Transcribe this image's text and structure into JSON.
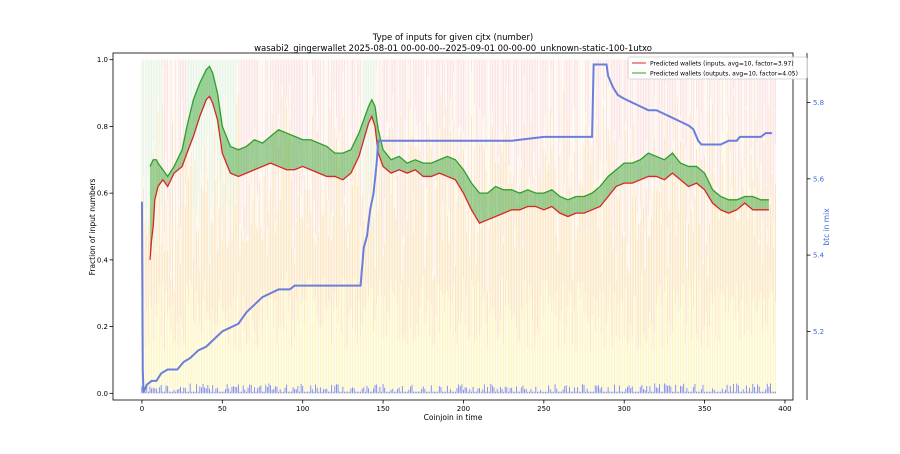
{
  "chart_data": {
    "type": "line",
    "title": "Type of inputs for given cjtx (number)",
    "subtitle": "wasabi2_gingerwallet 2025-08-01 00-00-00--2025-09-01 00-00-00_unknown-static-100-1utxo",
    "xlabel": "Coinjoin in time",
    "ylabel": "Fraction of input numbers",
    "y2label": "btc in mix",
    "xlim": [
      -18,
      405
    ],
    "ylim": [
      -0.02,
      1.02
    ],
    "y2lim": [
      5.02,
      5.93
    ],
    "x_ticks": [
      0,
      50,
      100,
      150,
      200,
      250,
      300,
      350,
      400
    ],
    "y_ticks": [
      0.0,
      0.2,
      0.4,
      0.6,
      0.8,
      1.0
    ],
    "y2_ticks": [
      5.2,
      5.4,
      5.6,
      5.8
    ],
    "y2_tick_labels": [
      "5.2",
      "5.4",
      "5.6",
      "5.8"
    ],
    "legend_position": "top-right",
    "grid": false,
    "colors": {
      "inputs_line": "#d62728",
      "outputs_line": "#2ca02c",
      "fill": "#2ca02c",
      "btc_line": "#6a7fdb",
      "y2_axis": "#4169e1",
      "bars_orange": "#f5b041",
      "bars_yellow": "#f7e96b",
      "bars_pink": "#f4b6be",
      "bars_lightgreen": "#bfe5bf",
      "bars_cream": "#fdebd3",
      "bars_blue": "#3b4fd6"
    },
    "series": [
      {
        "name": "Predicted wallets (inputs, avg=10, factor=3.97)",
        "points": [
          [
            5,
            0.4
          ],
          [
            6,
            0.46
          ],
          [
            7,
            0.5
          ],
          [
            8,
            0.58
          ],
          [
            9,
            0.6
          ],
          [
            10,
            0.62
          ],
          [
            13,
            0.64
          ],
          [
            16,
            0.62
          ],
          [
            20,
            0.66
          ],
          [
            25,
            0.68
          ],
          [
            28,
            0.72
          ],
          [
            32,
            0.77
          ],
          [
            36,
            0.83
          ],
          [
            40,
            0.88
          ],
          [
            42,
            0.89
          ],
          [
            44,
            0.87
          ],
          [
            47,
            0.82
          ],
          [
            50,
            0.72
          ],
          [
            55,
            0.66
          ],
          [
            60,
            0.65
          ],
          [
            65,
            0.66
          ],
          [
            70,
            0.67
          ],
          [
            75,
            0.68
          ],
          [
            80,
            0.69
          ],
          [
            85,
            0.68
          ],
          [
            90,
            0.67
          ],
          [
            95,
            0.67
          ],
          [
            100,
            0.68
          ],
          [
            105,
            0.67
          ],
          [
            110,
            0.66
          ],
          [
            115,
            0.65
          ],
          [
            120,
            0.65
          ],
          [
            125,
            0.64
          ],
          [
            130,
            0.66
          ],
          [
            135,
            0.71
          ],
          [
            138,
            0.76
          ],
          [
            141,
            0.81
          ],
          [
            143,
            0.83
          ],
          [
            145,
            0.8
          ],
          [
            147,
            0.72
          ],
          [
            150,
            0.68
          ],
          [
            155,
            0.66
          ],
          [
            160,
            0.67
          ],
          [
            165,
            0.66
          ],
          [
            170,
            0.67
          ],
          [
            175,
            0.65
          ],
          [
            180,
            0.65
          ],
          [
            185,
            0.66
          ],
          [
            190,
            0.65
          ],
          [
            195,
            0.64
          ],
          [
            200,
            0.6
          ],
          [
            205,
            0.55
          ],
          [
            210,
            0.51
          ],
          [
            215,
            0.52
          ],
          [
            220,
            0.53
          ],
          [
            225,
            0.54
          ],
          [
            230,
            0.55
          ],
          [
            235,
            0.55
          ],
          [
            240,
            0.56
          ],
          [
            245,
            0.56
          ],
          [
            250,
            0.55
          ],
          [
            255,
            0.56
          ],
          [
            260,
            0.54
          ],
          [
            265,
            0.53
          ],
          [
            270,
            0.54
          ],
          [
            275,
            0.54
          ],
          [
            280,
            0.55
          ],
          [
            285,
            0.56
          ],
          [
            290,
            0.59
          ],
          [
            295,
            0.62
          ],
          [
            300,
            0.63
          ],
          [
            305,
            0.63
          ],
          [
            310,
            0.64
          ],
          [
            315,
            0.65
          ],
          [
            320,
            0.65
          ],
          [
            325,
            0.64
          ],
          [
            330,
            0.66
          ],
          [
            335,
            0.64
          ],
          [
            340,
            0.62
          ],
          [
            345,
            0.63
          ],
          [
            350,
            0.61
          ],
          [
            355,
            0.57
          ],
          [
            360,
            0.55
          ],
          [
            365,
            0.54
          ],
          [
            370,
            0.55
          ],
          [
            375,
            0.57
          ],
          [
            380,
            0.55
          ],
          [
            385,
            0.55
          ],
          [
            390,
            0.55
          ]
        ]
      },
      {
        "name": "Predicted wallets (outputs, avg=10, factor=4.05)",
        "points": [
          [
            5,
            0.68
          ],
          [
            6,
            0.69
          ],
          [
            7,
            0.7
          ],
          [
            8,
            0.7
          ],
          [
            9,
            0.7
          ],
          [
            10,
            0.69
          ],
          [
            13,
            0.67
          ],
          [
            16,
            0.65
          ],
          [
            20,
            0.68
          ],
          [
            25,
            0.73
          ],
          [
            28,
            0.8
          ],
          [
            32,
            0.88
          ],
          [
            36,
            0.93
          ],
          [
            40,
            0.97
          ],
          [
            42,
            0.98
          ],
          [
            44,
            0.96
          ],
          [
            47,
            0.9
          ],
          [
            50,
            0.8
          ],
          [
            55,
            0.74
          ],
          [
            60,
            0.73
          ],
          [
            65,
            0.74
          ],
          [
            70,
            0.76
          ],
          [
            75,
            0.75
          ],
          [
            80,
            0.77
          ],
          [
            85,
            0.79
          ],
          [
            90,
            0.78
          ],
          [
            95,
            0.77
          ],
          [
            100,
            0.76
          ],
          [
            105,
            0.76
          ],
          [
            110,
            0.75
          ],
          [
            115,
            0.74
          ],
          [
            120,
            0.72
          ],
          [
            125,
            0.72
          ],
          [
            130,
            0.73
          ],
          [
            135,
            0.78
          ],
          [
            138,
            0.82
          ],
          [
            141,
            0.86
          ],
          [
            143,
            0.88
          ],
          [
            145,
            0.86
          ],
          [
            147,
            0.79
          ],
          [
            150,
            0.73
          ],
          [
            155,
            0.7
          ],
          [
            160,
            0.71
          ],
          [
            165,
            0.69
          ],
          [
            170,
            0.7
          ],
          [
            175,
            0.69
          ],
          [
            180,
            0.69
          ],
          [
            185,
            0.7
          ],
          [
            190,
            0.71
          ],
          [
            195,
            0.7
          ],
          [
            200,
            0.67
          ],
          [
            205,
            0.63
          ],
          [
            210,
            0.6
          ],
          [
            215,
            0.6
          ],
          [
            220,
            0.62
          ],
          [
            225,
            0.61
          ],
          [
            230,
            0.61
          ],
          [
            235,
            0.6
          ],
          [
            240,
            0.61
          ],
          [
            245,
            0.6
          ],
          [
            250,
            0.6
          ],
          [
            255,
            0.61
          ],
          [
            260,
            0.59
          ],
          [
            265,
            0.58
          ],
          [
            270,
            0.59
          ],
          [
            275,
            0.59
          ],
          [
            280,
            0.6
          ],
          [
            285,
            0.62
          ],
          [
            290,
            0.65
          ],
          [
            295,
            0.67
          ],
          [
            300,
            0.69
          ],
          [
            305,
            0.69
          ],
          [
            310,
            0.7
          ],
          [
            315,
            0.72
          ],
          [
            320,
            0.71
          ],
          [
            325,
            0.7
          ],
          [
            330,
            0.72
          ],
          [
            335,
            0.69
          ],
          [
            340,
            0.68
          ],
          [
            345,
            0.68
          ],
          [
            350,
            0.66
          ],
          [
            355,
            0.61
          ],
          [
            360,
            0.59
          ],
          [
            365,
            0.58
          ],
          [
            370,
            0.58
          ],
          [
            375,
            0.59
          ],
          [
            380,
            0.59
          ],
          [
            385,
            0.58
          ],
          [
            390,
            0.58
          ]
        ]
      },
      {
        "name": "btc in mix",
        "axis": "right",
        "points": [
          [
            0,
            5.54
          ],
          [
            0.5,
            5.1
          ],
          [
            1,
            5.04
          ],
          [
            3,
            5.06
          ],
          [
            6,
            5.07
          ],
          [
            9,
            5.07
          ],
          [
            12,
            5.09
          ],
          [
            16,
            5.1
          ],
          [
            22,
            5.1
          ],
          [
            26,
            5.12
          ],
          [
            30,
            5.13
          ],
          [
            35,
            5.15
          ],
          [
            40,
            5.16
          ],
          [
            45,
            5.18
          ],
          [
            50,
            5.2
          ],
          [
            55,
            5.21
          ],
          [
            60,
            5.22
          ],
          [
            65,
            5.25
          ],
          [
            70,
            5.27
          ],
          [
            75,
            5.29
          ],
          [
            80,
            5.3
          ],
          [
            85,
            5.31
          ],
          [
            90,
            5.31
          ],
          [
            92,
            5.31
          ],
          [
            95,
            5.32
          ],
          [
            100,
            5.32
          ],
          [
            110,
            5.32
          ],
          [
            120,
            5.32
          ],
          [
            130,
            5.32
          ],
          [
            136,
            5.32
          ],
          [
            138,
            5.42
          ],
          [
            140,
            5.45
          ],
          [
            142,
            5.52
          ],
          [
            144,
            5.56
          ],
          [
            146,
            5.64
          ],
          [
            147,
            5.7
          ],
          [
            150,
            5.7
          ],
          [
            175,
            5.7
          ],
          [
            200,
            5.7
          ],
          [
            230,
            5.7
          ],
          [
            250,
            5.71
          ],
          [
            275,
            5.71
          ],
          [
            280,
            5.71
          ],
          [
            281,
            5.9
          ],
          [
            284,
            5.9
          ],
          [
            289,
            5.9
          ],
          [
            290,
            5.87
          ],
          [
            293,
            5.84
          ],
          [
            296,
            5.82
          ],
          [
            300,
            5.81
          ],
          [
            305,
            5.8
          ],
          [
            310,
            5.79
          ],
          [
            315,
            5.78
          ],
          [
            320,
            5.78
          ],
          [
            325,
            5.77
          ],
          [
            330,
            5.76
          ],
          [
            335,
            5.75
          ],
          [
            340,
            5.74
          ],
          [
            343,
            5.73
          ],
          [
            346,
            5.7
          ],
          [
            348,
            5.69
          ],
          [
            352,
            5.69
          ],
          [
            356,
            5.69
          ],
          [
            360,
            5.69
          ],
          [
            365,
            5.7
          ],
          [
            370,
            5.7
          ],
          [
            372,
            5.71
          ],
          [
            380,
            5.71
          ],
          [
            385,
            5.71
          ],
          [
            388,
            5.72
          ],
          [
            392,
            5.72
          ]
        ]
      }
    ],
    "background_bars": {
      "x_range": [
        0,
        394
      ],
      "layers_top_to_bottom": [
        "pink",
        "cream",
        "orange",
        "yellow",
        "blue"
      ],
      "green_top_regions": [
        [
          0,
          12
        ],
        [
          28,
          60
        ],
        [
          138,
          146
        ]
      ],
      "description_values": "per-coinjoin stacked fractions"
    }
  }
}
